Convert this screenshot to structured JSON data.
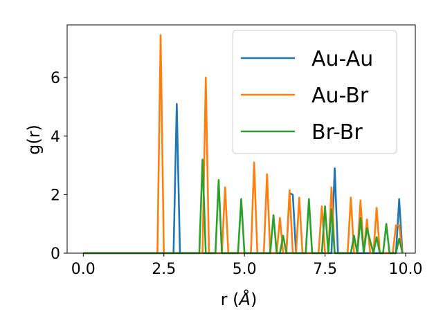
{
  "chart_data": {
    "type": "line",
    "xlabel": "r (",
    "xlabel_unit": "Å",
    "xlabel_close": ")",
    "ylabel": "g(r)",
    "xlim": [
      -0.5,
      10.3
    ],
    "ylim": [
      0,
      7.8
    ],
    "xticks": [
      0.0,
      2.5,
      5.0,
      7.5,
      10.0
    ],
    "xtick_labels": [
      "0.0",
      "2.5",
      "5.0",
      "7.5",
      "10.0"
    ],
    "yticks": [
      0,
      2,
      4,
      6
    ],
    "ytick_labels": [
      "0",
      "2",
      "4",
      "6"
    ],
    "grid": false,
    "legend_position": "top-right",
    "series": [
      {
        "name": "Au-Au",
        "color": "#1f77b4",
        "x": [
          0.0,
          2.8,
          2.9,
          3.0,
          3.1,
          6.3,
          6.4,
          6.5,
          6.6,
          6.7,
          7.7,
          7.8,
          7.9,
          9.7,
          9.8,
          9.9
        ],
        "y": [
          0,
          0,
          5.1,
          0,
          0,
          0,
          2.05,
          2.0,
          0,
          0,
          0,
          2.9,
          0,
          0,
          1.85,
          0
        ]
      },
      {
        "name": "Au-Br",
        "color": "#ff7f0e",
        "x": [
          0.0,
          2.3,
          2.4,
          2.5,
          3.7,
          3.8,
          3.9,
          4.3,
          4.4,
          4.5,
          5.2,
          5.3,
          5.4,
          5.6,
          5.7,
          5.8,
          6.0,
          6.1,
          6.2,
          6.3,
          6.4,
          6.5,
          6.6,
          6.7,
          6.8,
          7.3,
          7.4,
          7.5,
          7.6,
          7.7,
          7.8,
          8.2,
          8.3,
          8.4,
          8.5,
          8.6,
          8.7,
          8.8,
          8.9,
          9.0,
          9.1,
          9.2,
          9.3,
          9.4,
          9.6,
          9.7,
          9.8,
          9.9
        ],
        "y": [
          0,
          0,
          7.45,
          0,
          0,
          6.0,
          0,
          0,
          2.25,
          0,
          0,
          3.1,
          0,
          0,
          2.7,
          0,
          0,
          1.2,
          0,
          0,
          2.15,
          0,
          0,
          1.9,
          0,
          0,
          1.6,
          0,
          0,
          2.25,
          0,
          0,
          1.9,
          0,
          0,
          1.8,
          0,
          1.15,
          0,
          0,
          1.55,
          0,
          0,
          0,
          0,
          0.95,
          0.95,
          0
        ]
      },
      {
        "name": "Br-Br",
        "color": "#2ca02c",
        "x": [
          0.0,
          3.6,
          3.7,
          3.8,
          4.1,
          4.2,
          4.3,
          4.8,
          4.9,
          5.0,
          5.8,
          5.9,
          6.0,
          6.1,
          6.2,
          6.3,
          6.9,
          7.0,
          7.1,
          7.4,
          7.5,
          7.6,
          7.7,
          7.8,
          8.3,
          8.4,
          8.5,
          8.6,
          8.7,
          8.8,
          9.0,
          9.1,
          9.2,
          9.3,
          9.4,
          9.5,
          9.7,
          9.8,
          9.9
        ],
        "y": [
          0,
          0,
          3.2,
          0,
          0,
          2.5,
          0,
          0,
          1.85,
          0,
          0,
          1.3,
          0,
          0,
          0.6,
          0,
          0,
          1.85,
          0,
          0,
          1.6,
          0,
          1.5,
          0,
          0,
          0.6,
          0,
          1.2,
          0,
          0.85,
          0,
          0.55,
          0,
          0,
          1.0,
          0,
          0,
          0.5,
          0
        ]
      }
    ]
  }
}
